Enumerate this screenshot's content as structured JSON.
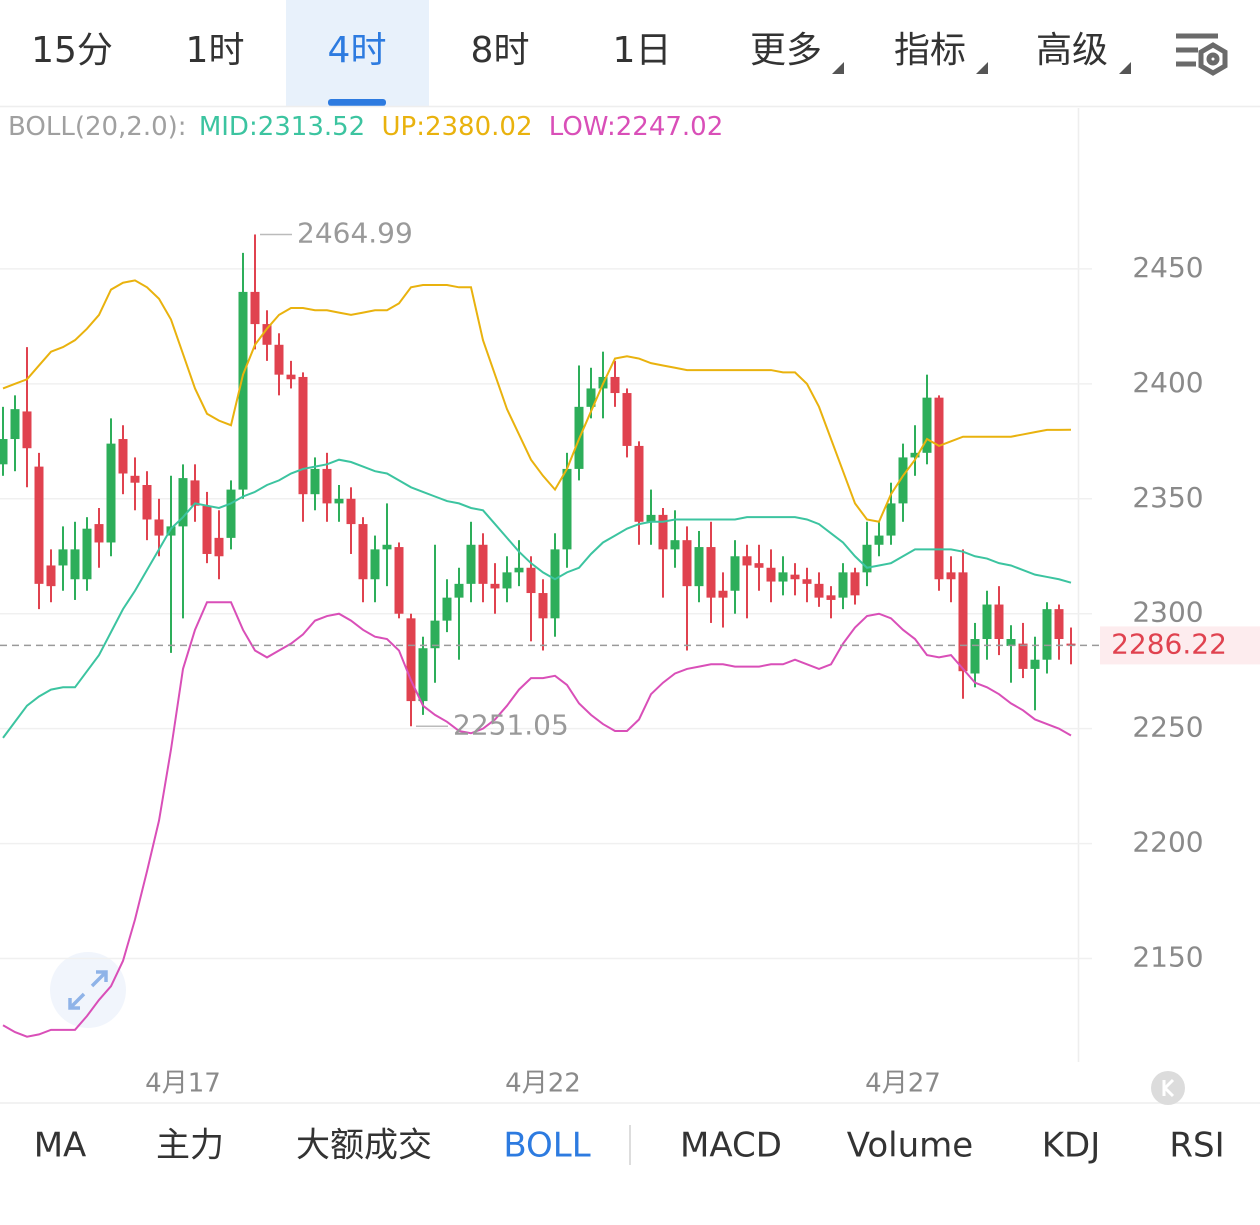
{
  "top_tabs": {
    "items": [
      "15分",
      "1时",
      "4时",
      "8时",
      "1日",
      "更多",
      "指标",
      "高级"
    ],
    "selected": 2
  },
  "chart_data": {
    "type": "candlestick",
    "indicator": "BOLL(20,2.0):",
    "categories": [
      null,
      null,
      null,
      null,
      null,
      null,
      null,
      null,
      null,
      null,
      null,
      null,
      null,
      null,
      null,
      "4月17",
      null,
      null,
      null,
      null,
      null,
      null,
      null,
      null,
      null,
      null,
      null,
      null,
      null,
      null,
      null,
      null,
      null,
      null,
      null,
      null,
      null,
      null,
      null,
      null,
      null,
      null,
      null,
      null,
      null,
      "4月22",
      null,
      null,
      null,
      null,
      null,
      null,
      null,
      null,
      null,
      null,
      null,
      null,
      null,
      null,
      null,
      null,
      null,
      null,
      null,
      null,
      null,
      null,
      null,
      null,
      null,
      null,
      null,
      null,
      null,
      "4月27",
      null,
      null,
      null,
      null,
      null,
      null,
      null,
      null,
      null,
      null,
      null,
      null,
      null,
      null
    ],
    "open": [
      2365,
      2376,
      2388,
      2364,
      2321,
      2321,
      2315,
      2315,
      2339,
      2331,
      2376,
      2360,
      2356,
      2341,
      2334,
      2338,
      2358,
      2347,
      2333,
      2333,
      2354,
      2440,
      2426,
      2417,
      2404,
      2403,
      2352,
      2363,
      2348,
      2350,
      2339,
      2315,
      2328,
      2329,
      2298,
      2262,
      2285,
      2297,
      2307,
      2313,
      2330,
      2313,
      2311,
      2318,
      2320,
      2309,
      2298,
      2328,
      2363,
      2390,
      2398,
      2403,
      2396,
      2373,
      2340,
      2343,
      2328,
      2332,
      2312,
      2329,
      2310,
      2310,
      2325,
      2322,
      2320,
      2314,
      2317,
      2315,
      2313,
      2308,
      2307,
      2318,
      2318,
      2330,
      2334,
      2348,
      2368,
      2370,
      2394,
      2318,
      2318,
      2274,
      2289,
      2304,
      2286,
      2287,
      2276,
      2280,
      2302,
      2287
    ],
    "high": [
      2390,
      2395,
      2416,
      2370,
      2328,
      2338,
      2340,
      2342,
      2346,
      2385,
      2382,
      2368,
      2362,
      2350,
      2360,
      2365,
      2365,
      2353,
      2345,
      2358,
      2457,
      2464.99,
      2432,
      2422,
      2410,
      2405,
      2368,
      2370,
      2356,
      2355,
      2342,
      2334,
      2348,
      2331,
      2300,
      2290,
      2330,
      2315,
      2320,
      2340,
      2335,
      2322,
      2325,
      2332,
      2325,
      2315,
      2335,
      2370,
      2408,
      2407,
      2414,
      2410,
      2398,
      2375,
      2354,
      2346,
      2345,
      2338,
      2336,
      2340,
      2318,
      2332,
      2330,
      2330,
      2328,
      2325,
      2322,
      2320,
      2318,
      2312,
      2322,
      2320,
      2340,
      2340,
      2357,
      2374,
      2382,
      2404,
      2395,
      2325,
      2328,
      2296,
      2310,
      2312,
      2295,
      2296,
      2290,
      2305,
      2304,
      2294
    ],
    "low": [
      2360,
      2362,
      2355,
      2302,
      2305,
      2310,
      2306,
      2310,
      2320,
      2325,
      2352,
      2345,
      2332,
      2325,
      2283,
      2298,
      2340,
      2322,
      2315,
      2328,
      2350,
      2415,
      2410,
      2395,
      2398,
      2340,
      2345,
      2340,
      2340,
      2326,
      2305,
      2305,
      2312,
      2298,
      2251.05,
      2256,
      2270,
      2292,
      2280,
      2305,
      2305,
      2300,
      2305,
      2312,
      2288,
      2284,
      2290,
      2320,
      2358,
      2385,
      2385,
      2390,
      2368,
      2330,
      2330,
      2307,
      2320,
      2284,
      2305,
      2296,
      2294,
      2300,
      2298,
      2310,
      2305,
      2308,
      2308,
      2305,
      2303,
      2298,
      2302,
      2304,
      2312,
      2325,
      2330,
      2340,
      2360,
      2365,
      2310,
      2305,
      2263,
      2268,
      2280,
      2282,
      2270,
      2272,
      2258,
      2274,
      2280,
      2278
    ],
    "close": [
      2376,
      2389,
      2372,
      2313,
      2312,
      2328,
      2328,
      2337,
      2331,
      2374,
      2361,
      2357,
      2341,
      2334,
      2338,
      2359,
      2347,
      2326,
      2325,
      2354,
      2440,
      2426,
      2417,
      2404,
      2402,
      2352,
      2363,
      2348,
      2350,
      2339,
      2315,
      2328,
      2330,
      2300,
      2262,
      2285,
      2297,
      2307,
      2313,
      2330,
      2313,
      2311,
      2318,
      2320,
      2309,
      2298,
      2328,
      2363,
      2390,
      2398,
      2403,
      2396,
      2373,
      2340,
      2343,
      2328,
      2332,
      2312,
      2329,
      2307,
      2307,
      2325,
      2321,
      2320,
      2314,
      2318,
      2315,
      2313,
      2307,
      2306,
      2318,
      2308,
      2330,
      2334,
      2348,
      2368,
      2370,
      2394,
      2315,
      2315,
      2275,
      2289,
      2304,
      2289,
      2289,
      2276,
      2280,
      2302,
      2289,
      2286.22
    ],
    "up_color": "#2dae5a",
    "down_color": "#e0424f",
    "series": [
      {
        "name": "MID:2313.52",
        "color": "#3cc4a0",
        "values": [
          2246,
          2253,
          2260,
          2264,
          2267,
          2268,
          2268,
          2275,
          2282,
          2292,
          2302,
          2310,
          2319,
          2328,
          2337,
          2342,
          2348,
          2347,
          2346,
          2348,
          2351,
          2353,
          2356,
          2358,
          2361,
          2363,
          2364,
          2365,
          2367,
          2366,
          2364,
          2362,
          2361,
          2358,
          2355,
          2353,
          2351,
          2349,
          2348,
          2346,
          2345,
          2339,
          2333,
          2327,
          2322,
          2318,
          2315,
          2318,
          2320,
          2326,
          2331,
          2334,
          2337,
          2339,
          2340,
          2340,
          2341,
          2341,
          2341,
          2341,
          2341,
          2341,
          2342,
          2342,
          2342,
          2342,
          2342,
          2341,
          2339,
          2335,
          2331,
          2325,
          2320,
          2321,
          2322,
          2325,
          2328,
          2328,
          2328,
          2328,
          2327,
          2325,
          2324,
          2322,
          2321,
          2319,
          2317,
          2316,
          2315,
          2313.52
        ]
      },
      {
        "name": "UP:2380.02",
        "color": "#e9b20e",
        "values": [
          2398,
          2400,
          2402,
          2408,
          2414,
          2416,
          2419,
          2424,
          2430,
          2441,
          2444,
          2445,
          2442,
          2437,
          2428,
          2413,
          2398,
          2387,
          2384,
          2382,
          2404,
          2417,
          2424,
          2430,
          2433,
          2433,
          2432,
          2432,
          2431,
          2430,
          2431,
          2432,
          2432,
          2435,
          2442,
          2443,
          2443,
          2443,
          2442,
          2442,
          2419,
          2404,
          2389,
          2378,
          2367,
          2360,
          2354,
          2363,
          2376,
          2388,
          2400,
          2411,
          2412,
          2411,
          2409,
          2408,
          2407,
          2406,
          2406,
          2406,
          2406,
          2406,
          2406,
          2406,
          2406,
          2405,
          2405,
          2400,
          2390,
          2376,
          2362,
          2348,
          2341,
          2340,
          2352,
          2360,
          2367,
          2376,
          2373,
          2375,
          2377,
          2377,
          2377,
          2377,
          2377,
          2378,
          2379,
          2380,
          2380,
          2380.02
        ]
      },
      {
        "name": "LOW:2247.02",
        "color": "#d94fb8",
        "values": [
          2121,
          2118,
          2116,
          2117,
          2119,
          2119,
          2119,
          2125,
          2132,
          2138,
          2149,
          2167,
          2188,
          2210,
          2241,
          2276,
          2293,
          2305,
          2305,
          2305,
          2293,
          2284,
          2281,
          2284,
          2287,
          2291,
          2297,
          2299,
          2300,
          2297,
          2293,
          2290,
          2289,
          2284,
          2271,
          2260,
          2256,
          2253,
          2249,
          2248,
          2250,
          2254,
          2260,
          2267,
          2272,
          2272,
          2273,
          2269,
          2261,
          2256,
          2252,
          2249,
          2249,
          2254,
          2265,
          2270,
          2274,
          2276,
          2277,
          2278,
          2278,
          2277,
          2277,
          2277,
          2278,
          2278,
          2280,
          2278,
          2276,
          2278,
          2287,
          2294,
          2299,
          2300,
          2298,
          2293,
          2289,
          2282,
          2281,
          2282,
          2276,
          2270,
          2268,
          2265,
          2261,
          2258,
          2254,
          2252,
          2250,
          2247.02
        ]
      }
    ],
    "ylim": [
      2105,
      2520
    ],
    "yticks": [
      2150,
      2200,
      2250,
      2300,
      2350,
      2400,
      2450
    ],
    "grid": true
  },
  "bottom_tabs": {
    "items": [
      "MA",
      "主力",
      "大额成交",
      "BOLL",
      "MACD",
      "Volume",
      "KDJ",
      "RSI"
    ],
    "selected": 3
  }
}
